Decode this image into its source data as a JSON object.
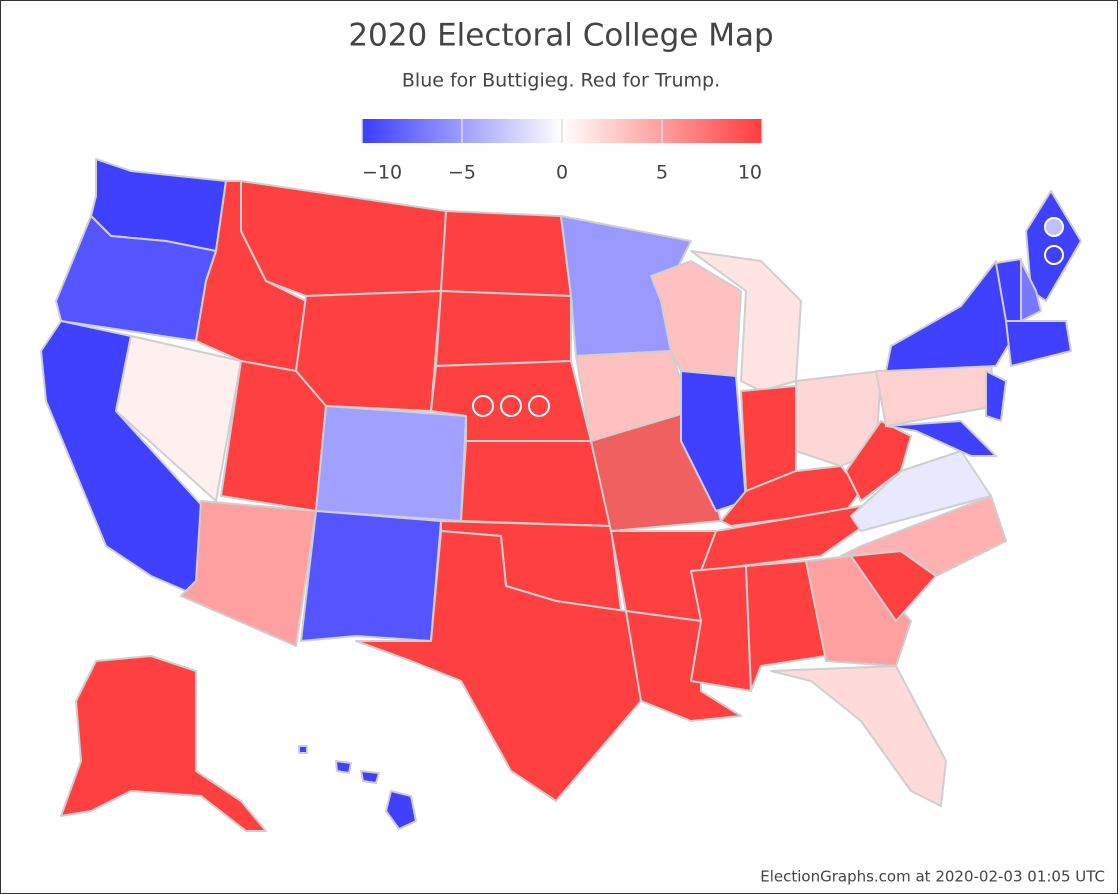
{
  "header": {
    "title": "2020 Electoral College Map",
    "subtitle": "Blue for Buttigieg. Red for Trump."
  },
  "legend": {
    "lim": [
      -10,
      10
    ],
    "colors": [
      "#3c3cff",
      "#ffffff",
      "#ff3c3c"
    ],
    "ticks": [
      {
        "value": -10,
        "label": "−10"
      },
      {
        "value": -5,
        "label": "−5"
      },
      0,
      5,
      10
    ]
  },
  "footer": "ElectionGraphs.com at 2020-02-03 01:05 UTC"
}
